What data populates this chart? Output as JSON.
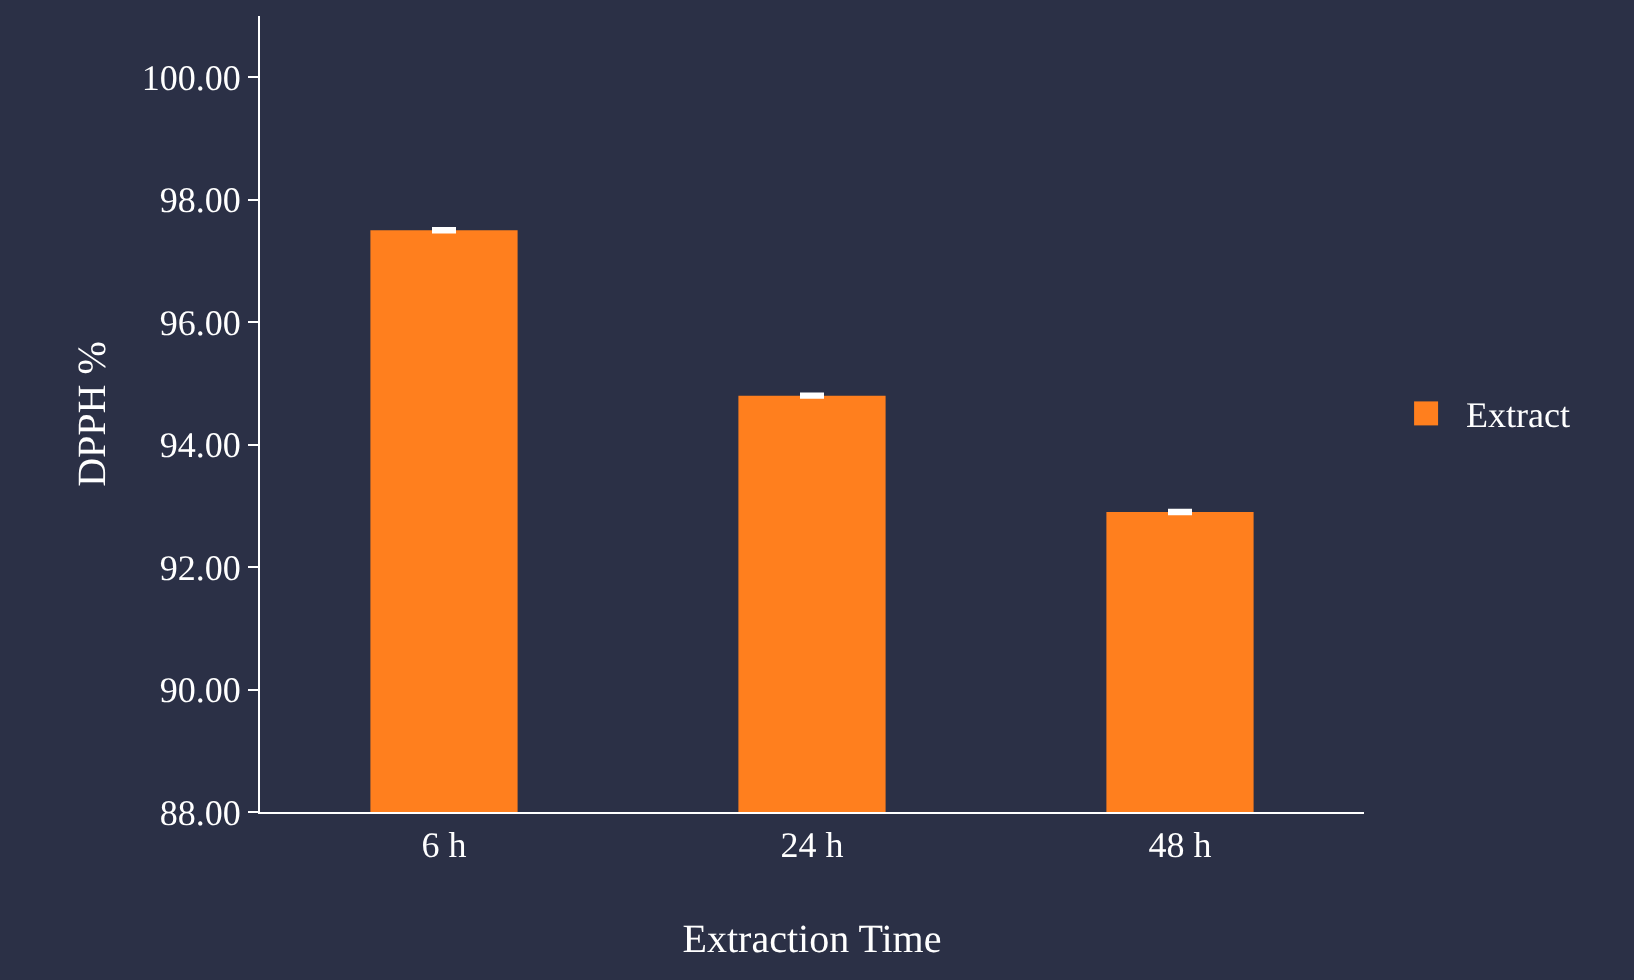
{
  "chart_data": {
    "type": "bar",
    "xlabel": "Extraction Time",
    "ylabel": "DPPH %",
    "categories": [
      "6 h",
      "24 h",
      "48 h"
    ],
    "series": [
      {
        "name": "Extract",
        "color": "#ff7f1e",
        "values": [
          97.5,
          94.8,
          92.9
        ],
        "errors": [
          0.02,
          0.02,
          0.02
        ]
      }
    ],
    "ylim": [
      88,
      101
    ],
    "yticks": [
      {
        "value": 88,
        "label": "88.00"
      },
      {
        "value": 90,
        "label": "90.00"
      },
      {
        "value": 92,
        "label": "92.00"
      },
      {
        "value": 94,
        "label": "94.00"
      },
      {
        "value": 96,
        "label": "96.00"
      },
      {
        "value": 98,
        "label": "98.00"
      },
      {
        "value": 100,
        "label": "100.00"
      }
    ],
    "grid": false,
    "legend": "right"
  }
}
